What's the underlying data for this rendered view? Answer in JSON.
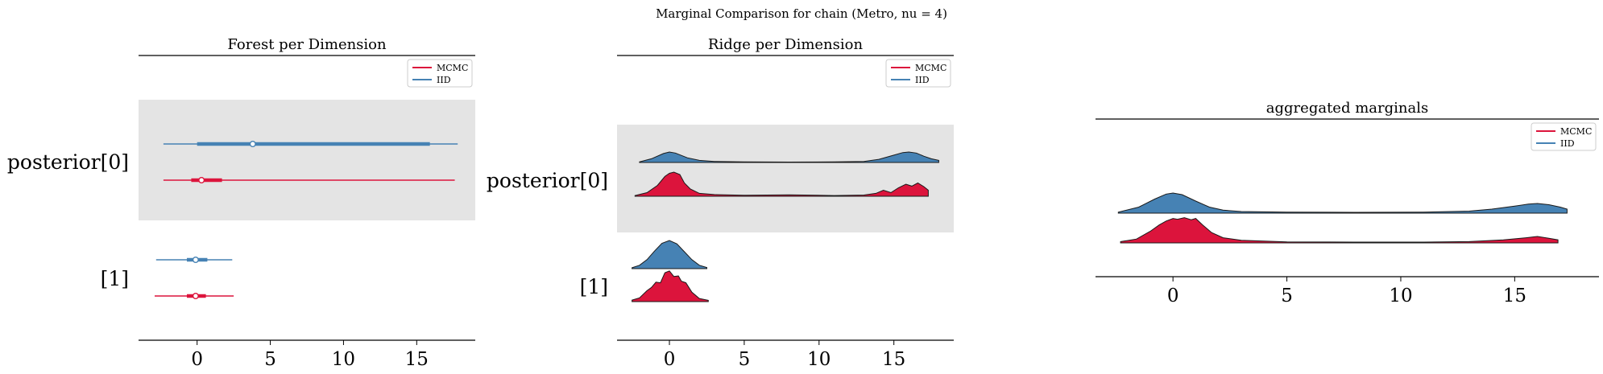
{
  "suptitle": "Marginal Comparison for chain (Metro, nu = 4)",
  "colors": {
    "MCMC": "#dc143c",
    "IID": "#4682b4",
    "band": "#e4e4e4"
  },
  "legend": {
    "location": "upper-right",
    "entries": [
      "MCMC",
      "IID"
    ]
  },
  "chart_data": [
    {
      "type": "forest",
      "title": "Forest per Dimension",
      "xlim": [
        -4,
        19
      ],
      "xticks": [
        0,
        5,
        10,
        15
      ],
      "xtick_labels": [
        "0",
        "5",
        "10",
        "15"
      ],
      "ylabels": [
        "posterior[0]",
        "[1]"
      ],
      "series": [
        {
          "name": "IID",
          "rows": [
            {
              "param": "posterior[0]",
              "hdi_94": [
                -2.3,
                17.8
              ],
              "hdi_50": [
                0.0,
                15.9
              ],
              "point": 3.8
            },
            {
              "param": "[1]",
              "hdi_94": [
                -2.8,
                2.4
              ],
              "hdi_50": [
                -0.7,
                0.7
              ],
              "point": -0.1
            }
          ]
        },
        {
          "name": "MCMC",
          "rows": [
            {
              "param": "posterior[0]",
              "hdi_94": [
                -2.3,
                17.6
              ],
              "hdi_50": [
                -0.4,
                1.7
              ],
              "point": 0.3
            },
            {
              "param": "[1]",
              "hdi_94": [
                -2.9,
                2.5
              ],
              "hdi_50": [
                -0.7,
                0.6
              ],
              "point": -0.1
            }
          ]
        }
      ]
    },
    {
      "type": "area",
      "subtype": "ridgeplot",
      "title": "Ridge per Dimension",
      "xlim": [
        -3.5,
        19
      ],
      "xticks": [
        0,
        5,
        10,
        15
      ],
      "xtick_labels": [
        "0",
        "5",
        "10",
        "15"
      ],
      "ylabels": [
        "posterior[0]",
        "[1]"
      ],
      "series": [
        {
          "name": "IID",
          "param": "posterior[0]",
          "x": [
            -2.0,
            -1.2,
            -0.4,
            0.0,
            0.4,
            1.2,
            2.0,
            3.0,
            5.0,
            8.0,
            11.0,
            13.0,
            14.0,
            15.0,
            15.6,
            16.0,
            16.5,
            17.0,
            17.5,
            18.0
          ],
          "y": [
            0.05,
            0.35,
            0.85,
            1.0,
            0.9,
            0.45,
            0.2,
            0.1,
            0.05,
            0.04,
            0.05,
            0.1,
            0.3,
            0.7,
            0.95,
            1.0,
            0.9,
            0.6,
            0.35,
            0.2
          ]
        },
        {
          "name": "MCMC",
          "param": "posterior[0]",
          "x": [
            -2.3,
            -1.5,
            -0.8,
            -0.3,
            0.0,
            0.3,
            0.7,
            1.0,
            1.4,
            2.0,
            3.0,
            5.0,
            8.0,
            11.0,
            13.0,
            13.8,
            14.3,
            14.8,
            15.3,
            15.8,
            16.2,
            16.6,
            17.0,
            17.3
          ],
          "y": [
            0.03,
            0.15,
            0.45,
            0.82,
            0.95,
            1.0,
            0.9,
            0.55,
            0.3,
            0.12,
            0.07,
            0.04,
            0.06,
            0.03,
            0.05,
            0.12,
            0.25,
            0.15,
            0.35,
            0.5,
            0.42,
            0.55,
            0.4,
            0.25
          ]
        },
        {
          "name": "IID",
          "param": "[1]",
          "x": [
            -2.5,
            -2.0,
            -1.5,
            -1.0,
            -0.5,
            0.0,
            0.5,
            1.0,
            1.5,
            2.0,
            2.5
          ],
          "y": [
            0.03,
            0.12,
            0.32,
            0.62,
            0.9,
            1.0,
            0.88,
            0.6,
            0.32,
            0.12,
            0.04
          ]
        },
        {
          "name": "MCMC",
          "param": "[1]",
          "x": [
            -2.5,
            -2.0,
            -1.5,
            -1.2,
            -0.9,
            -0.6,
            -0.3,
            0.0,
            0.3,
            0.6,
            0.8,
            1.1,
            1.5,
            2.0,
            2.6
          ],
          "y": [
            0.05,
            0.12,
            0.35,
            0.45,
            0.62,
            0.6,
            0.92,
            0.98,
            0.8,
            0.82,
            0.65,
            0.6,
            0.3,
            0.1,
            0.04
          ]
        }
      ]
    },
    {
      "type": "area",
      "subtype": "ridgeplot",
      "title": "aggregated marginals",
      "xlim": [
        -3.4,
        18.7
      ],
      "xticks": [
        0,
        5,
        10,
        15
      ],
      "xtick_labels": [
        "0",
        "5",
        "10",
        "15"
      ],
      "series": [
        {
          "name": "IID",
          "x": [
            -2.4,
            -1.5,
            -0.8,
            -0.3,
            0.0,
            0.4,
            1.0,
            1.6,
            2.2,
            3.0,
            5.0,
            8.0,
            11.0,
            13.0,
            14.0,
            15.0,
            15.6,
            16.0,
            16.5,
            17.0,
            17.3
          ],
          "y": [
            0.05,
            0.3,
            0.7,
            0.95,
            1.0,
            0.92,
            0.6,
            0.3,
            0.15,
            0.08,
            0.05,
            0.04,
            0.05,
            0.1,
            0.2,
            0.35,
            0.45,
            0.48,
            0.42,
            0.3,
            0.2
          ]
        },
        {
          "name": "MCMC",
          "x": [
            -2.3,
            -1.6,
            -1.0,
            -0.6,
            -0.3,
            0.0,
            0.2,
            0.5,
            0.8,
            1.0,
            1.3,
            1.7,
            2.2,
            3.0,
            5.0,
            8.0,
            11.0,
            13.0,
            14.5,
            15.5,
            16.0,
            16.5,
            16.9
          ],
          "y": [
            0.05,
            0.15,
            0.45,
            0.7,
            0.85,
            0.95,
            0.92,
            0.98,
            0.9,
            0.95,
            0.7,
            0.4,
            0.2,
            0.1,
            0.04,
            0.03,
            0.03,
            0.05,
            0.12,
            0.2,
            0.25,
            0.18,
            0.12
          ]
        }
      ]
    }
  ]
}
